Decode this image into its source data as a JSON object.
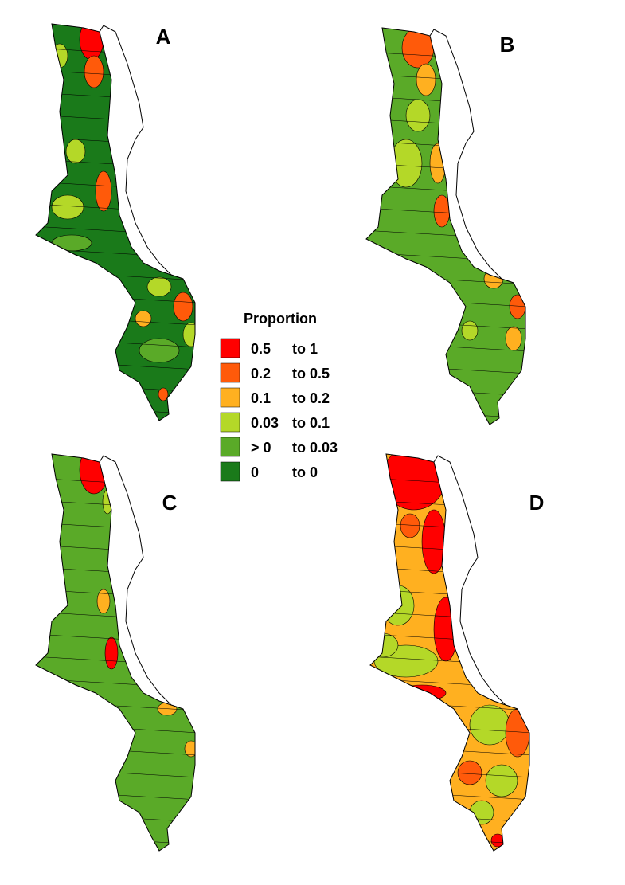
{
  "panels": [
    {
      "label": "A"
    },
    {
      "label": "B"
    },
    {
      "label": "C"
    },
    {
      "label": "D"
    }
  ],
  "legend": {
    "title": "Proportion",
    "items": [
      {
        "from": "0.5",
        "to": "to 1",
        "color": "#ff0000"
      },
      {
        "from": "0.2",
        "to": "to 0.5",
        "color": "#ff5a0a"
      },
      {
        "from": "0.1",
        "to": "to 0.2",
        "color": "#ffb020"
      },
      {
        "from": "0.03",
        "to": "to 0.1",
        "color": "#b4d828"
      },
      {
        "from": "> 0",
        "to": "to 0.03",
        "color": "#5aaa28"
      },
      {
        "from": "0",
        "to": "to 0",
        "color": "#1a7a1a"
      }
    ]
  }
}
